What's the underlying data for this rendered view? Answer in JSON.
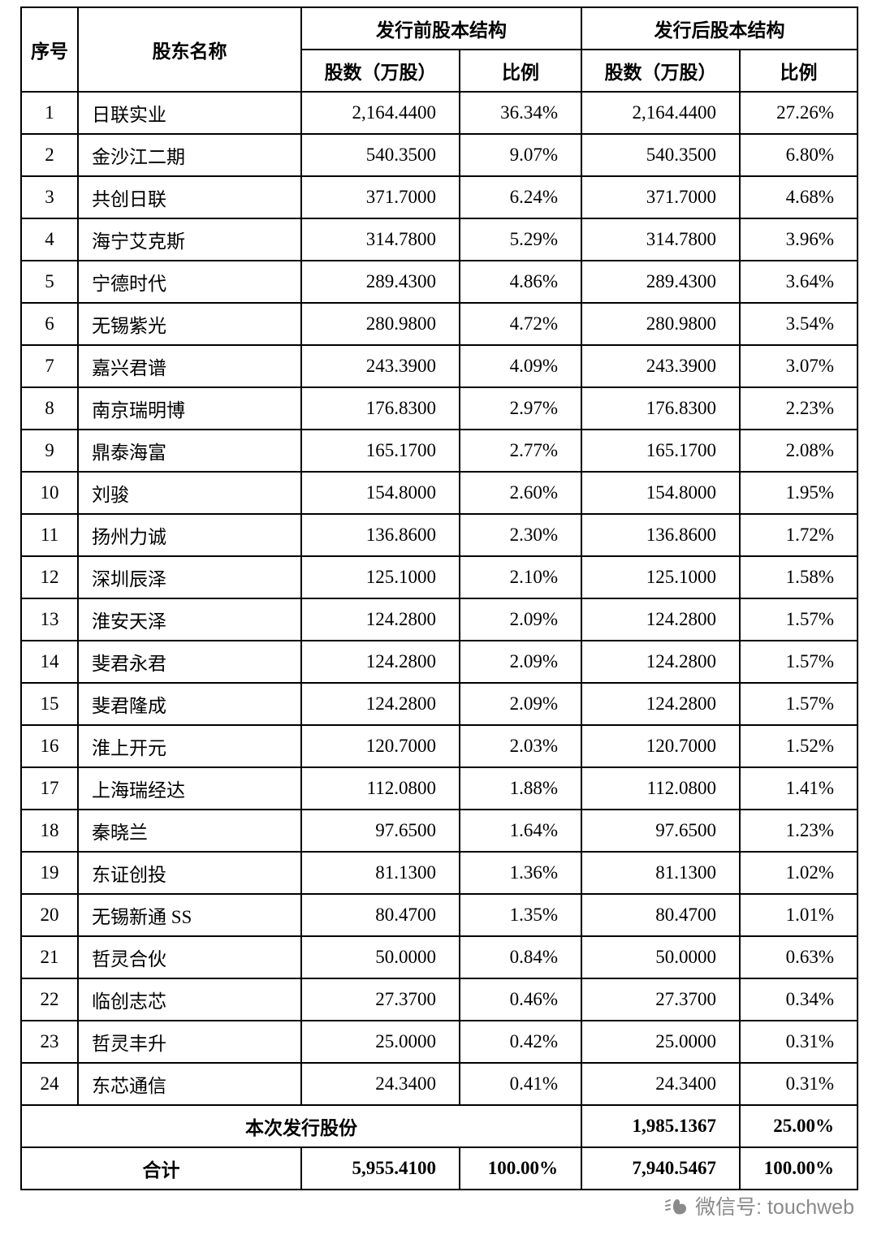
{
  "table": {
    "headers": {
      "col_index": "序号",
      "col_name": "股东名称",
      "group_pre": "发行前股本结构",
      "group_post": "发行后股本结构",
      "col_shares_pre": "股数（万股）",
      "col_ratio_pre": "比例",
      "col_shares_post": "股数（万股）",
      "col_ratio_post": "比例"
    },
    "rows": [
      {
        "no": "1",
        "name": "日联实业",
        "pre_shares": "2,164.4400",
        "pre_ratio": "36.34%",
        "post_shares": "2,164.4400",
        "post_ratio": "27.26%"
      },
      {
        "no": "2",
        "name": "金沙江二期",
        "pre_shares": "540.3500",
        "pre_ratio": "9.07%",
        "post_shares": "540.3500",
        "post_ratio": "6.80%"
      },
      {
        "no": "3",
        "name": "共创日联",
        "pre_shares": "371.7000",
        "pre_ratio": "6.24%",
        "post_shares": "371.7000",
        "post_ratio": "4.68%"
      },
      {
        "no": "4",
        "name": "海宁艾克斯",
        "pre_shares": "314.7800",
        "pre_ratio": "5.29%",
        "post_shares": "314.7800",
        "post_ratio": "3.96%"
      },
      {
        "no": "5",
        "name": "宁德时代",
        "pre_shares": "289.4300",
        "pre_ratio": "4.86%",
        "post_shares": "289.4300",
        "post_ratio": "3.64%"
      },
      {
        "no": "6",
        "name": "无锡紫光",
        "pre_shares": "280.9800",
        "pre_ratio": "4.72%",
        "post_shares": "280.9800",
        "post_ratio": "3.54%"
      },
      {
        "no": "7",
        "name": "嘉兴君谱",
        "pre_shares": "243.3900",
        "pre_ratio": "4.09%",
        "post_shares": "243.3900",
        "post_ratio": "3.07%"
      },
      {
        "no": "8",
        "name": "南京瑞明博",
        "pre_shares": "176.8300",
        "pre_ratio": "2.97%",
        "post_shares": "176.8300",
        "post_ratio": "2.23%"
      },
      {
        "no": "9",
        "name": "鼎泰海富",
        "pre_shares": "165.1700",
        "pre_ratio": "2.77%",
        "post_shares": "165.1700",
        "post_ratio": "2.08%"
      },
      {
        "no": "10",
        "name": "刘骏",
        "pre_shares": "154.8000",
        "pre_ratio": "2.60%",
        "post_shares": "154.8000",
        "post_ratio": "1.95%"
      },
      {
        "no": "11",
        "name": "扬州力诚",
        "pre_shares": "136.8600",
        "pre_ratio": "2.30%",
        "post_shares": "136.8600",
        "post_ratio": "1.72%"
      },
      {
        "no": "12",
        "name": "深圳辰泽",
        "pre_shares": "125.1000",
        "pre_ratio": "2.10%",
        "post_shares": "125.1000",
        "post_ratio": "1.58%"
      },
      {
        "no": "13",
        "name": "淮安天泽",
        "pre_shares": "124.2800",
        "pre_ratio": "2.09%",
        "post_shares": "124.2800",
        "post_ratio": "1.57%"
      },
      {
        "no": "14",
        "name": "斐君永君",
        "pre_shares": "124.2800",
        "pre_ratio": "2.09%",
        "post_shares": "124.2800",
        "post_ratio": "1.57%"
      },
      {
        "no": "15",
        "name": "斐君隆成",
        "pre_shares": "124.2800",
        "pre_ratio": "2.09%",
        "post_shares": "124.2800",
        "post_ratio": "1.57%"
      },
      {
        "no": "16",
        "name": "淮上开元",
        "pre_shares": "120.7000",
        "pre_ratio": "2.03%",
        "post_shares": "120.7000",
        "post_ratio": "1.52%"
      },
      {
        "no": "17",
        "name": "上海瑞经达",
        "pre_shares": "112.0800",
        "pre_ratio": "1.88%",
        "post_shares": "112.0800",
        "post_ratio": "1.41%"
      },
      {
        "no": "18",
        "name": "秦晓兰",
        "pre_shares": "97.6500",
        "pre_ratio": "1.64%",
        "post_shares": "97.6500",
        "post_ratio": "1.23%"
      },
      {
        "no": "19",
        "name": "东证创投",
        "pre_shares": "81.1300",
        "pre_ratio": "1.36%",
        "post_shares": "81.1300",
        "post_ratio": "1.02%"
      },
      {
        "no": "20",
        "name": "无锡新通 SS",
        "pre_shares": "80.4700",
        "pre_ratio": "1.35%",
        "post_shares": "80.4700",
        "post_ratio": "1.01%"
      },
      {
        "no": "21",
        "name": "哲灵合伙",
        "pre_shares": "50.0000",
        "pre_ratio": "0.84%",
        "post_shares": "50.0000",
        "post_ratio": "0.63%"
      },
      {
        "no": "22",
        "name": "临创志芯",
        "pre_shares": "27.3700",
        "pre_ratio": "0.46%",
        "post_shares": "27.3700",
        "post_ratio": "0.34%"
      },
      {
        "no": "23",
        "name": "哲灵丰升",
        "pre_shares": "25.0000",
        "pre_ratio": "0.42%",
        "post_shares": "25.0000",
        "post_ratio": "0.31%"
      },
      {
        "no": "24",
        "name": "东芯通信",
        "pre_shares": "24.3400",
        "pre_ratio": "0.41%",
        "post_shares": "24.3400",
        "post_ratio": "0.31%"
      }
    ],
    "issue_row": {
      "label": "本次发行股份",
      "post_shares": "1,985.1367",
      "post_ratio": "25.00%"
    },
    "total_row": {
      "label": "合计",
      "pre_shares": "5,955.4100",
      "pre_ratio": "100.00%",
      "post_shares": "7,940.5467",
      "post_ratio": "100.00%"
    }
  },
  "footer": {
    "wechat_label": "微信号: touchweb"
  }
}
